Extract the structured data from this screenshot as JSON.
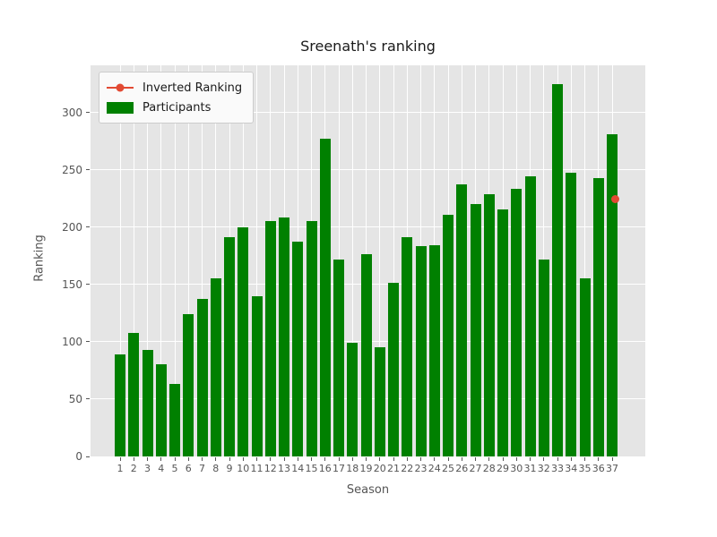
{
  "title": "Sreenath's ranking",
  "xlabel": "Season",
  "ylabel": "Ranking",
  "legend": {
    "items": [
      {
        "label": "Inverted Ranking",
        "marker": "line-with-dot",
        "color": "#e24a33"
      },
      {
        "label": "Participants",
        "marker": "filled-patch",
        "color": "#008000"
      }
    ]
  },
  "colors": {
    "plot_background": "#e5e5e5",
    "grid": "#ffffff",
    "bar": "#008000",
    "point": "#e24a33",
    "tick_text": "#555555",
    "title_text": "#1a1a1a"
  },
  "chart_data": {
    "type": "bar",
    "title": "Sreenath's ranking",
    "xlabel": "Season",
    "ylabel": "Ranking",
    "categories": [
      "1",
      "2",
      "3",
      "4",
      "5",
      "6",
      "7",
      "8",
      "9",
      "10",
      "11",
      "12",
      "13",
      "14",
      "15",
      "16",
      "17",
      "18",
      "19",
      "20",
      "21",
      "22",
      "23",
      "24",
      "25",
      "26",
      "27",
      "28",
      "29",
      "30",
      "31",
      "32",
      "33",
      "34",
      "35",
      "36",
      "37"
    ],
    "series": [
      {
        "name": "Participants",
        "type": "bar",
        "color": "#008000",
        "values": [
          89,
          108,
          93,
          80,
          63,
          124,
          137,
          155,
          191,
          200,
          140,
          205,
          208,
          187,
          205,
          277,
          172,
          99,
          176,
          95,
          151,
          191,
          183,
          184,
          211,
          237,
          220,
          229,
          215,
          233,
          244,
          172,
          325,
          247,
          155,
          243,
          281
        ]
      },
      {
        "name": "Inverted Ranking",
        "type": "scatter",
        "color": "#e24a33",
        "points": [
          {
            "x": "37",
            "y": 224
          }
        ]
      }
    ],
    "yticks": [
      0,
      50,
      100,
      150,
      200,
      250,
      300
    ],
    "ylim": [
      0,
      341
    ],
    "grid": true,
    "legend_position": "upper left",
    "plot_bg": "#e5e5e5"
  }
}
